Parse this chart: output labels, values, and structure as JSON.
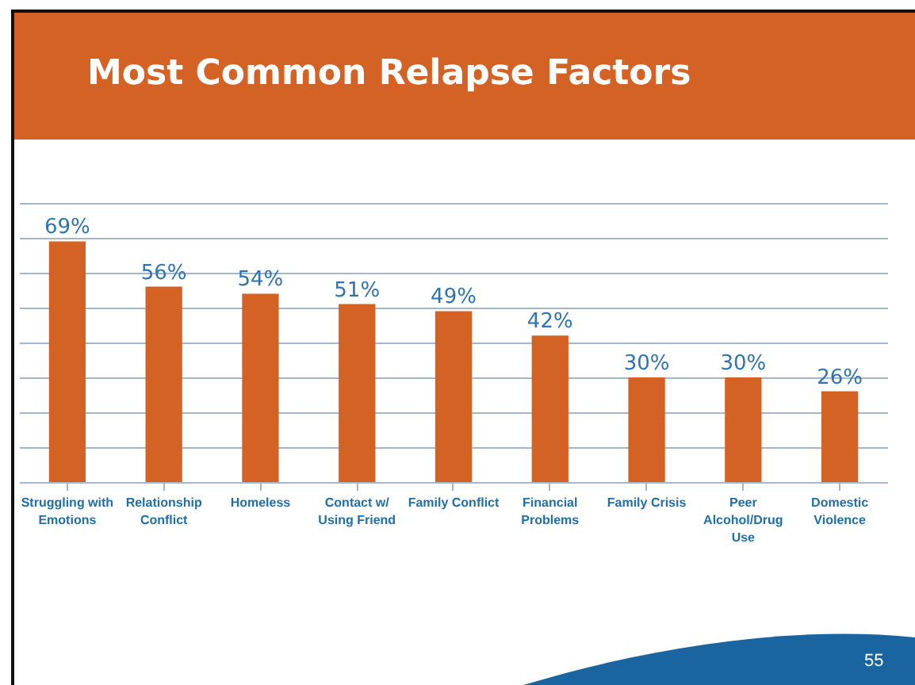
{
  "chart_data": {
    "type": "bar",
    "title": "Most Common Relapse Factors",
    "categories": [
      "Struggling with Emotions",
      "Relationship Conflict",
      "Homeless",
      "Contact w/ Using Friend",
      "Family Conflict",
      "Financial Problems",
      "Family Crisis",
      "Peer Alcohol/Drug Use",
      "Domestic Violence"
    ],
    "values": [
      69,
      56,
      54,
      51,
      49,
      42,
      30,
      30,
      26
    ],
    "value_labels": [
      "69%",
      "56%",
      "54%",
      "51%",
      "49%",
      "42%",
      "30%",
      "30%",
      "26%"
    ],
    "color": "#d46224",
    "ylim": [
      0,
      80
    ],
    "yticks": [
      {
        "value": 0,
        "label": null
      },
      {
        "value": 10,
        "label": null
      },
      {
        "value": 20,
        "label": null
      },
      {
        "value": 30,
        "label": null
      },
      {
        "value": 40,
        "label": null
      },
      {
        "value": 50,
        "label": null
      },
      {
        "value": 60,
        "label": null
      },
      {
        "value": 70,
        "label": null
      },
      {
        "value": 80,
        "label": null
      }
    ],
    "grid": "y",
    "tick_labels": "x",
    "annotations": [
      "55"
    ]
  }
}
